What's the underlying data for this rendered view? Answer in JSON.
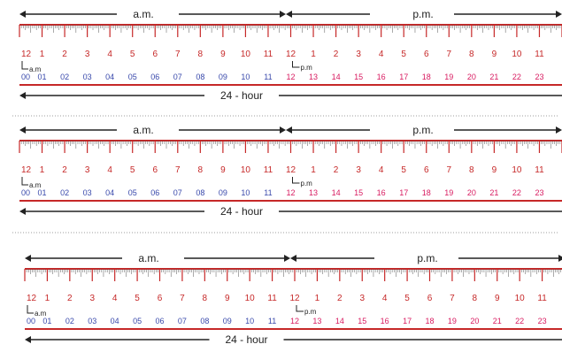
{
  "labels": {
    "am": "a.m.",
    "pm": "p.m.",
    "twenty_four": "24 - hour",
    "am_tag": "a.m",
    "pm_tag": "p.m"
  },
  "hours_12": [
    "12",
    "1",
    "2",
    "3",
    "4",
    "5",
    "6",
    "7",
    "8",
    "9",
    "10",
    "11",
    "12",
    "1",
    "2",
    "3",
    "4",
    "5",
    "6",
    "7",
    "8",
    "9",
    "10",
    "11"
  ],
  "hours_24": [
    "00",
    "01",
    "02",
    "03",
    "04",
    "05",
    "06",
    "07",
    "08",
    "09",
    "10",
    "11",
    "12",
    "13",
    "14",
    "15",
    "16",
    "17",
    "18",
    "19",
    "20",
    "21",
    "22",
    "23"
  ],
  "colors": {
    "red": "#c62828",
    "am_blue": "#3949ab",
    "pm_pink": "#d81b60",
    "text": "#222222",
    "divider": "#9e9e9e"
  },
  "strips": 3
}
